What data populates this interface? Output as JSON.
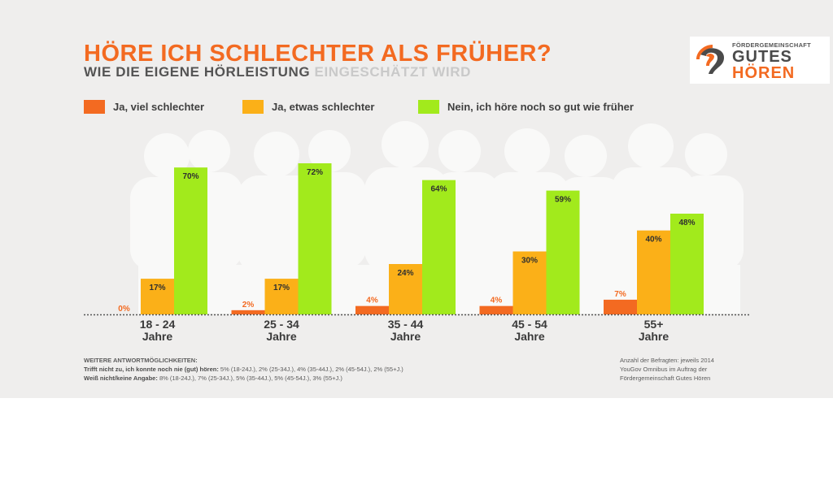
{
  "header": {
    "title": "HÖRE ICH SCHLECHTER ALS FRÜHER?",
    "subtitle_dark": "WIE DIE EIGENE HÖRLEISTUNG",
    "subtitle_light": "EINGESCHÄTZT WIRD"
  },
  "logo": {
    "small_text": "FÖRDERGEMEINSCHAFT",
    "line1": "GUTES",
    "line2": "HÖREN"
  },
  "colors": {
    "series1": "#f36a21",
    "series2": "#fbb018",
    "series3": "#a2ea1c",
    "title": "#f36a21"
  },
  "chart_data": {
    "type": "bar",
    "title": "HÖRE ICH SCHLECHTER ALS FRÜHER?",
    "subtitle": "WIE DIE EIGENE HÖRLEISTUNG EINGESCHÄTZT WIRD",
    "categories": [
      "18 - 24 Jahre",
      "25 - 34 Jahre",
      "35 - 44 Jahre",
      "45 - 54 Jahre",
      "55+ Jahre"
    ],
    "category_lines": [
      [
        "18 - 24",
        "Jahre"
      ],
      [
        "25 - 34",
        "Jahre"
      ],
      [
        "35 - 44",
        "Jahre"
      ],
      [
        "45 - 54",
        "Jahre"
      ],
      [
        "55+",
        "Jahre"
      ]
    ],
    "series": [
      {
        "name": "Ja, viel schlechter",
        "values": [
          0,
          2,
          4,
          4,
          7
        ],
        "labels": [
          "0%",
          "2%",
          "4%",
          "4%",
          "7%"
        ]
      },
      {
        "name": "Ja, etwas schlechter",
        "values": [
          17,
          17,
          24,
          30,
          40
        ],
        "labels": [
          "17%",
          "17%",
          "24%",
          "30%",
          "40%"
        ]
      },
      {
        "name": "Nein, ich höre noch so gut wie früher",
        "values": [
          70,
          72,
          64,
          59,
          48
        ],
        "labels": [
          "70%",
          "72%",
          "64%",
          "59%",
          "48%"
        ]
      }
    ],
    "xlabel": "",
    "ylabel": "",
    "ylim": [
      0,
      72
    ],
    "grid": false,
    "legend": "top-left"
  },
  "footer": {
    "heading": "WEITERE ANTWORTMÖGLICHKEITEN:",
    "line1_label": "Trifft nicht zu, ich konnte noch nie (gut) hören:",
    "line1_value": " 5% (18-24J.), 2% (25-34J.), 4% (35-44J.), 2% (45-54J.), 2% (55+J.)",
    "line2_label": "Weiß nicht/keine Angabe:",
    "line2_value": " 8% (18-24J.), 7% (25-34J.), 5% (35-44J.), 5% (45-54J.), 3% (55+J.)",
    "source_line1": "Anzahl der Befragten: jeweils 2014",
    "source_line2": "YouGov Omnibus im Auftrag der",
    "source_line3": "Fördergemeinschaft Gutes Hören"
  }
}
